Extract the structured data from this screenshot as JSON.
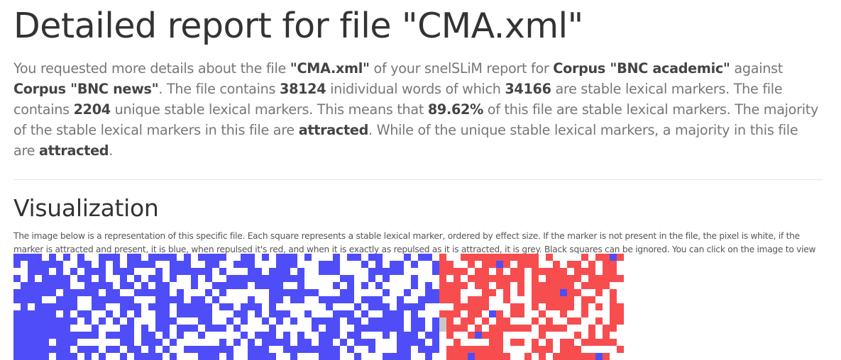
{
  "report": {
    "title": "Detailed report for file \"CMA.xml\"",
    "intro": {
      "t1": "You requested more details about the file ",
      "file": "\"CMA.xml\"",
      "t2": " of your snelSLiM report for ",
      "corpus_a": "Corpus \"BNC academic\"",
      "t3": " against ",
      "corpus_b": "Corpus \"BNC news\"",
      "t4": ". The file contains ",
      "word_count": "38124",
      "t5": " inidividual words of which ",
      "marker_count": "34166",
      "t6": " are stable lexical markers. The file contains ",
      "unique_count": "2204",
      "t7": " unique stable lexical markers. This means that ",
      "percentage": "89.62%",
      "t8": " of this file are stable lexical markers. The majority of the stable lexical markers in this file are ",
      "majority_all": "attracted",
      "t9": ". While of the unique stable lexical markers, a majority in this file are ",
      "majority_unique": "attracted",
      "t10": "."
    }
  },
  "visualization": {
    "heading": "Visualization",
    "description": "The image below is a representation of this specific file. Each square represents a stable lexical marker, ordered by effect size. If the marker is not present in the file, the pixel is white, if the marker is attracted and present, it is blue, when repulsed it's red, and when it is exactly as repulsed as it is attracted, it is grey. Black squares can be ignored. You can click on the image to view it in more detail.",
    "colors": {
      "attracted": "#4f4df7",
      "repulsed": "#f74d4f",
      "neutral": "#c8c8c8",
      "absent": "#ffffff"
    },
    "grid": {
      "columns": 86,
      "visible_rows": 15,
      "attracted_columns": 60,
      "repulsed_columns": 26
    }
  }
}
